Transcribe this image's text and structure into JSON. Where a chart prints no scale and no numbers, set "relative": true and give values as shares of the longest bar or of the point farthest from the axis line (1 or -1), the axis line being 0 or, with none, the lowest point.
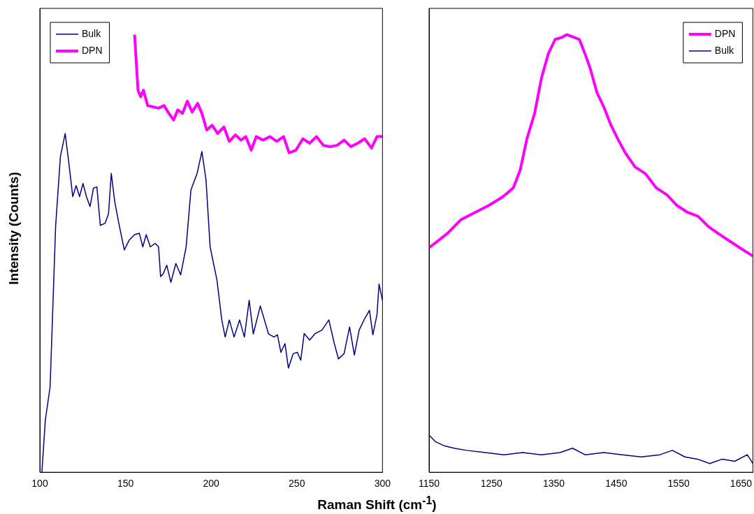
{
  "chart_data": [
    {
      "type": "line",
      "relative": true,
      "ylabel": "Intensity (Counts)",
      "xlabel": "Raman Shift (cm$^{-1}$)",
      "xlim": [
        100,
        300
      ],
      "xticks": [
        100,
        150,
        200,
        250,
        300
      ],
      "tick_labels": "x",
      "legend": "top left",
      "grid": false,
      "marker": "none",
      "series": [
        {
          "name": "Bulk",
          "color": "#000080",
          "x": [
            101.2,
            103.2,
            106,
            109.2,
            112,
            114.8,
            117.2,
            119.2,
            121.2,
            123.2,
            125.2,
            127.2,
            129.3,
            131.3,
            133.3,
            135.3,
            138.1,
            140.1,
            141.7,
            143.7,
            146.1,
            149.3,
            152.1,
            155.3,
            158.1,
            160.1,
            162.1,
            164.5,
            167.3,
            169.3,
            170.5,
            172.1,
            174.1,
            176.5,
            179.4,
            182.2,
            185.4,
            188.2,
            191.8,
            194.6,
            197,
            199.4,
            203.4,
            206.2,
            208.2,
            210.6,
            213.4,
            216.6,
            219.4,
            222.2,
            224.6,
            228.7,
            233.5,
            236.7,
            238.7,
            240.7,
            243.1,
            245.1,
            247.9,
            250.3,
            252.3,
            254.3,
            257.5,
            260.7,
            264.7,
            268.7,
            271.9,
            274.3,
            277.6,
            280.8,
            283.6,
            286.4,
            289.6,
            292.4,
            294.4,
            296.8,
            298,
            300
          ],
          "values": [
            0,
            0.119,
            0.195,
            0.561,
            0.721,
            0.774,
            0.698,
            0.63,
            0.655,
            0.63,
            0.66,
            0.63,
            0.607,
            0.649,
            0.652,
            0.564,
            0.569,
            0.591,
            0.683,
            0.619,
            0.569,
            0.508,
            0.53,
            0.543,
            0.546,
            0.515,
            0.543,
            0.515,
            0.523,
            0.515,
            0.447,
            0.454,
            0.473,
            0.434,
            0.477,
            0.451,
            0.515,
            0.645,
            0.683,
            0.733,
            0.668,
            0.515,
            0.439,
            0.348,
            0.309,
            0.348,
            0.309,
            0.348,
            0.309,
            0.393,
            0.316,
            0.38,
            0.316,
            0.309,
            0.314,
            0.274,
            0.294,
            0.238,
            0.271,
            0.274,
            0.256,
            0.317,
            0.302,
            0.317,
            0.325,
            0.348,
            0.294,
            0.259,
            0.271,
            0.332,
            0.268,
            0.325,
            0.351,
            0.37,
            0.314,
            0.36,
            0.43,
            0.393
          ]
        },
        {
          "name": "DPN",
          "color": "#ff00ff",
          "x": [
            155.3,
            157.3,
            158.9,
            160.5,
            162.9,
            166.1,
            169.3,
            172.5,
            175.3,
            178.1,
            180.5,
            183.3,
            186.1,
            188.9,
            192.1,
            194.6,
            197.4,
            200.6,
            203.8,
            207.4,
            210.6,
            214.2,
            217.4,
            220.2,
            223.4,
            226.3,
            230.3,
            234.3,
            238.3,
            242.3,
            245.5,
            249.5,
            253.5,
            257.5,
            261.5,
            265.5,
            269.5,
            273.5,
            277.6,
            281.6,
            285.6,
            289.6,
            293.6,
            296.8,
            300
          ],
          "values": [
            1,
            0.873,
            0.858,
            0.873,
            0.838,
            0.835,
            0.832,
            0.838,
            0.82,
            0.805,
            0.828,
            0.82,
            0.848,
            0.823,
            0.843,
            0.82,
            0.782,
            0.793,
            0.774,
            0.789,
            0.756,
            0.771,
            0.759,
            0.767,
            0.736,
            0.767,
            0.759,
            0.767,
            0.756,
            0.767,
            0.73,
            0.736,
            0.762,
            0.752,
            0.767,
            0.747,
            0.744,
            0.747,
            0.759,
            0.744,
            0.752,
            0.762,
            0.741,
            0.767,
            0.767
          ]
        }
      ]
    },
    {
      "type": "line",
      "relative": true,
      "xlim": [
        1150,
        1669
      ],
      "xticks": [
        1150,
        1250,
        1350,
        1450,
        1550,
        1650
      ],
      "tick_labels": "x",
      "legend": "top right",
      "grid": false,
      "marker": "none",
      "series": [
        {
          "name": "DPN",
          "color": "#ff00ff",
          "x": [
            1150,
            1179,
            1201,
            1224,
            1246,
            1268,
            1285,
            1296,
            1307,
            1319,
            1330,
            1341,
            1352,
            1363,
            1371,
            1382,
            1391,
            1400,
            1408,
            1419,
            1430,
            1441,
            1452,
            1464,
            1480,
            1497,
            1514,
            1531,
            1547,
            1564,
            1581,
            1598,
            1614,
            1631,
            1648,
            1669
          ],
          "values": [
            0.513,
            0.545,
            0.577,
            0.594,
            0.61,
            0.629,
            0.65,
            0.69,
            0.763,
            0.819,
            0.9,
            0.956,
            0.989,
            0.994,
            1,
            0.994,
            0.989,
            0.956,
            0.924,
            0.868,
            0.835,
            0.795,
            0.763,
            0.731,
            0.698,
            0.682,
            0.65,
            0.634,
            0.61,
            0.594,
            0.585,
            0.561,
            0.545,
            0.529,
            0.513,
            0.494
          ]
        },
        {
          "name": "Bulk",
          "color": "#000080",
          "x": [
            1150,
            1160,
            1175,
            1190,
            1210,
            1240,
            1270,
            1300,
            1330,
            1360,
            1380,
            1400,
            1430,
            1460,
            1490,
            1520,
            1540,
            1560,
            1580,
            1600,
            1620,
            1640,
            1660,
            1669
          ],
          "values": [
            0.085,
            0.07,
            0.06,
            0.055,
            0.05,
            0.045,
            0.04,
            0.045,
            0.04,
            0.045,
            0.055,
            0.04,
            0.045,
            0.04,
            0.035,
            0.04,
            0.05,
            0.035,
            0.03,
            0.02,
            0.03,
            0.025,
            0.04,
            0.02
          ]
        }
      ]
    }
  ]
}
